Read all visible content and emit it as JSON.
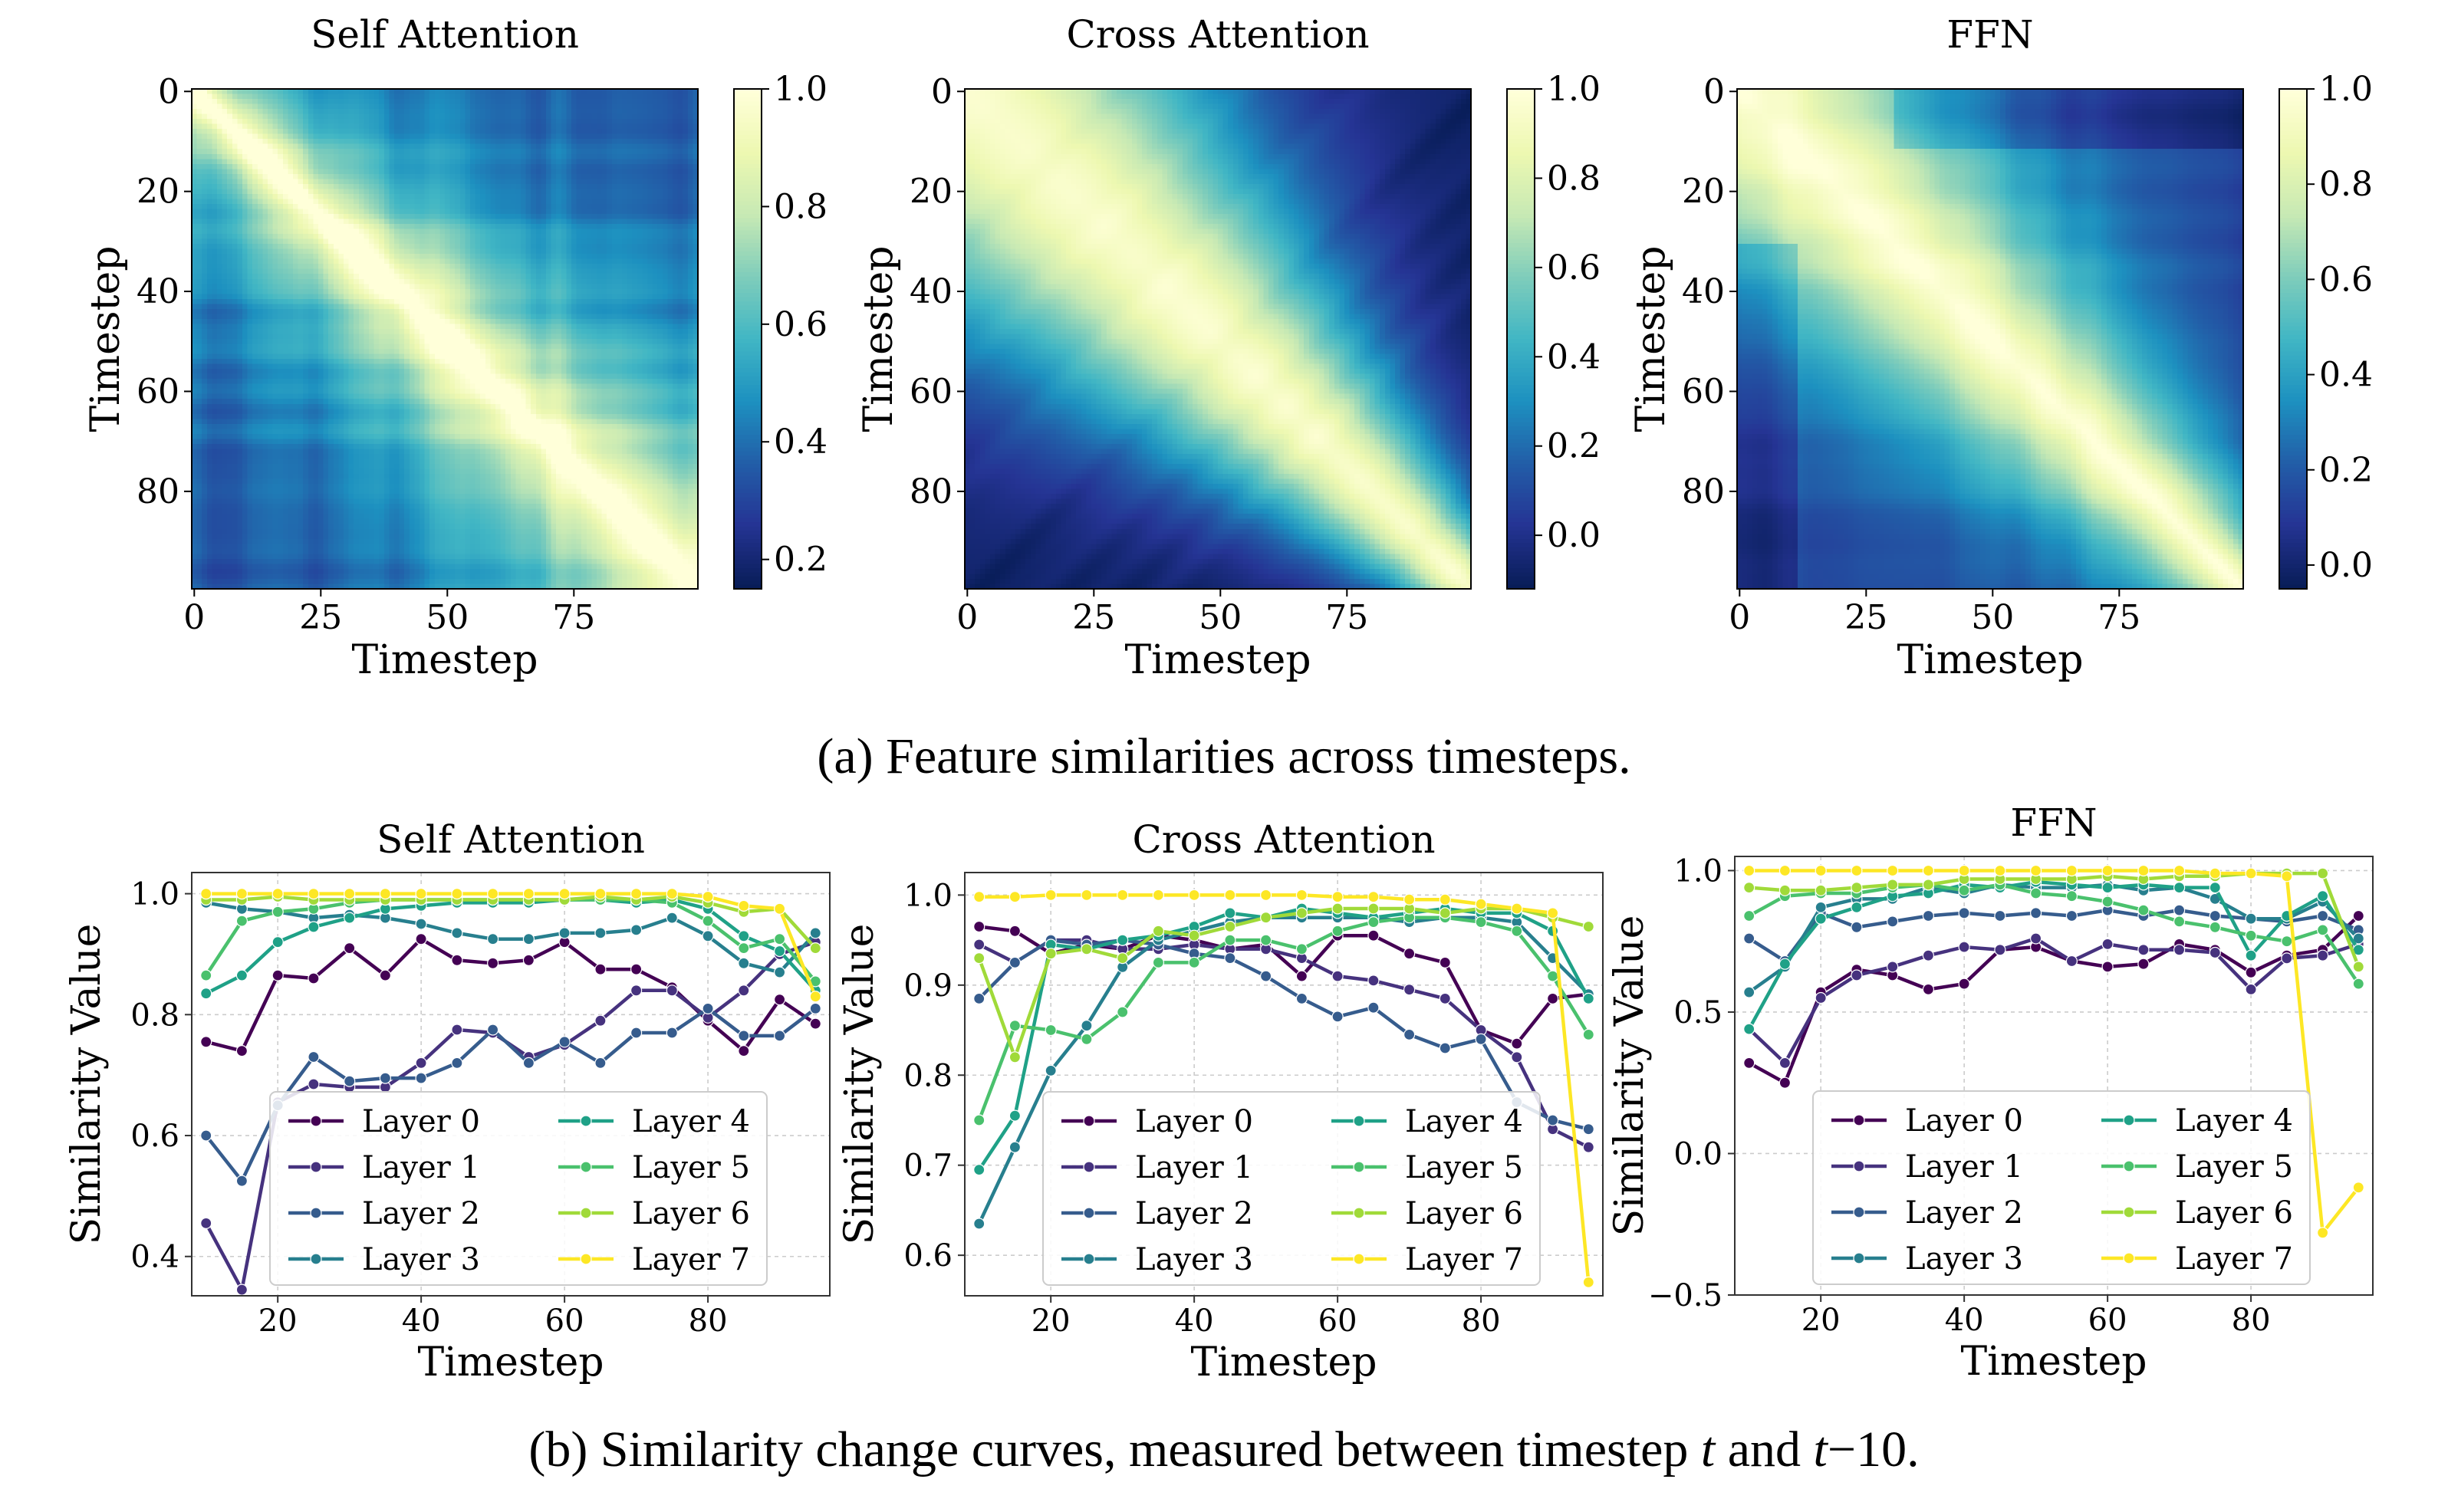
{
  "captions": {
    "a": "(a) Feature similarities across timesteps.",
    "b_prefix": "(b) Similarity change curves, measured between timestep ",
    "b_t1": "t",
    "b_mid": " and ",
    "b_t2": "t",
    "b_suffix": "−10."
  },
  "colors": {
    "viridis": [
      "#440154",
      "#46327e",
      "#365c8d",
      "#277f8e",
      "#1fa187",
      "#4ac16d",
      "#a0da39",
      "#fde725"
    ],
    "ylgnbu": [
      "#081d58",
      "#253494",
      "#225ea8",
      "#1d91c0",
      "#41b6c4",
      "#7fcdbb",
      "#c7e9b4",
      "#edf8b1",
      "#ffffd9"
    ]
  },
  "chart_data": [
    {
      "type": "heatmap",
      "title": "Self Attention",
      "xlabel": "Timestep",
      "ylabel": "Timestep",
      "xticks": [
        "0",
        "25",
        "50",
        "75"
      ],
      "yticks": [
        "0",
        "20",
        "40",
        "60",
        "80"
      ],
      "size": 100,
      "colorbar_ticks": [
        "0.2",
        "0.4",
        "0.6",
        "0.8",
        "1.0"
      ],
      "colorbar_range": [
        0.15,
        1.0
      ],
      "params": {
        "decay": 45,
        "base": 0.5,
        "noise": 0.09,
        "mode": "self"
      }
    },
    {
      "type": "heatmap",
      "title": "Cross Attention",
      "xlabel": "Timestep",
      "ylabel": "Timestep",
      "xticks": [
        "0",
        "25",
        "50",
        "75"
      ],
      "yticks": [
        "0",
        "20",
        "40",
        "60",
        "80"
      ],
      "size": 100,
      "colorbar_ticks": [
        "0.0",
        "0.2",
        "0.4",
        "0.6",
        "0.8",
        "1.0"
      ],
      "colorbar_range": [
        -0.12,
        1.0
      ],
      "params": {
        "decay": 30,
        "base": 0.0,
        "noise": 0.03,
        "mode": "cross"
      }
    },
    {
      "type": "heatmap",
      "title": "FFN",
      "xlabel": "Timestep",
      "ylabel": "Timestep",
      "xticks": [
        "0",
        "25",
        "50",
        "75"
      ],
      "yticks": [
        "0",
        "20",
        "40",
        "60",
        "80"
      ],
      "size": 100,
      "colorbar_ticks": [
        "0.0",
        "0.2",
        "0.4",
        "0.6",
        "0.8",
        "1.0"
      ],
      "colorbar_range": [
        -0.05,
        1.0
      ],
      "params": {
        "decay": 40,
        "base": 0.2,
        "noise": 0.05,
        "mode": "ffn"
      }
    },
    {
      "type": "line",
      "title": "Self Attention",
      "xlabel": "Timestep",
      "ylabel": "Similarity Value",
      "xlim": [
        8,
        97
      ],
      "ylim": [
        0.335,
        1.035
      ],
      "xticks": [
        20,
        40,
        60,
        80
      ],
      "yticks": [
        0.4,
        0.6,
        0.8,
        1.0
      ],
      "ytick_labels": [
        "0.4",
        "0.6",
        "0.8",
        "1.0"
      ],
      "x": [
        10,
        15,
        20,
        25,
        30,
        35,
        40,
        45,
        50,
        55,
        60,
        65,
        70,
        75,
        80,
        85,
        90,
        95
      ],
      "series": [
        {
          "name": "Layer 0",
          "values": [
            0.755,
            0.74,
            0.865,
            0.86,
            0.91,
            0.865,
            0.925,
            0.89,
            0.885,
            0.89,
            0.92,
            0.875,
            0.875,
            0.845,
            0.79,
            0.74,
            0.825,
            0.785
          ]
        },
        {
          "name": "Layer 1",
          "values": [
            0.455,
            0.345,
            0.655,
            0.685,
            0.68,
            0.68,
            0.72,
            0.775,
            0.77,
            0.73,
            0.75,
            0.79,
            0.84,
            0.84,
            0.795,
            0.84,
            0.9,
            0.92
          ]
        },
        {
          "name": "Layer 2",
          "values": [
            0.6,
            0.525,
            0.65,
            0.73,
            0.69,
            0.695,
            0.695,
            0.72,
            0.775,
            0.72,
            0.755,
            0.72,
            0.77,
            0.77,
            0.81,
            0.765,
            0.765,
            0.81
          ]
        },
        {
          "name": "Layer 3",
          "values": [
            0.985,
            0.975,
            0.97,
            0.96,
            0.965,
            0.96,
            0.95,
            0.935,
            0.925,
            0.925,
            0.935,
            0.935,
            0.94,
            0.96,
            0.93,
            0.885,
            0.87,
            0.935
          ]
        },
        {
          "name": "Layer 4",
          "values": [
            0.835,
            0.865,
            0.92,
            0.945,
            0.96,
            0.975,
            0.98,
            0.985,
            0.985,
            0.985,
            0.99,
            0.99,
            0.985,
            0.99,
            0.975,
            0.93,
            0.905,
            0.84
          ]
        },
        {
          "name": "Layer 5",
          "values": [
            0.865,
            0.955,
            0.97,
            0.975,
            0.985,
            0.99,
            0.99,
            0.99,
            0.99,
            0.99,
            0.99,
            0.99,
            0.99,
            0.985,
            0.955,
            0.91,
            0.925,
            0.855
          ]
        },
        {
          "name": "Layer 6",
          "values": [
            0.99,
            0.99,
            0.995,
            0.99,
            0.99,
            0.99,
            0.99,
            0.99,
            0.99,
            0.99,
            0.99,
            0.995,
            0.99,
            0.995,
            0.985,
            0.97,
            0.975,
            0.91
          ]
        },
        {
          "name": "Layer 7",
          "values": [
            1.0,
            1.0,
            1.0,
            1.0,
            1.0,
            1.0,
            1.0,
            1.0,
            1.0,
            1.0,
            1.0,
            1.0,
            1.0,
            1.0,
            0.995,
            0.98,
            0.975,
            0.83
          ]
        }
      ],
      "legend": "lower-center, 2 columns"
    },
    {
      "type": "line",
      "title": "Cross Attention",
      "xlabel": "Timestep",
      "ylabel": "Similarity Value",
      "xlim": [
        8,
        97
      ],
      "ylim": [
        0.555,
        1.025
      ],
      "xticks": [
        20,
        40,
        60,
        80
      ],
      "yticks": [
        0.6,
        0.7,
        0.8,
        0.9,
        1.0
      ],
      "ytick_labels": [
        "0.6",
        "0.7",
        "0.8",
        "0.9",
        "1.0"
      ],
      "x": [
        10,
        15,
        20,
        25,
        30,
        35,
        40,
        45,
        50,
        55,
        60,
        65,
        70,
        75,
        80,
        85,
        90,
        95
      ],
      "series": [
        {
          "name": "Layer 0",
          "values": [
            0.965,
            0.96,
            0.935,
            0.945,
            0.94,
            0.955,
            0.95,
            0.94,
            0.945,
            0.91,
            0.955,
            0.955,
            0.935,
            0.925,
            0.85,
            0.835,
            0.885,
            0.89
          ]
        },
        {
          "name": "Layer 1",
          "values": [
            0.945,
            0.925,
            0.95,
            0.95,
            0.94,
            0.94,
            0.945,
            0.94,
            0.94,
            0.93,
            0.91,
            0.905,
            0.895,
            0.885,
            0.85,
            0.82,
            0.74,
            0.72
          ]
        },
        {
          "name": "Layer 2",
          "values": [
            0.885,
            0.925,
            0.95,
            0.945,
            0.95,
            0.945,
            0.935,
            0.93,
            0.91,
            0.885,
            0.865,
            0.875,
            0.845,
            0.83,
            0.84,
            0.77,
            0.75,
            0.74
          ]
        },
        {
          "name": "Layer 3",
          "values": [
            0.635,
            0.72,
            0.805,
            0.855,
            0.92,
            0.95,
            0.96,
            0.97,
            0.975,
            0.975,
            0.975,
            0.975,
            0.97,
            0.975,
            0.975,
            0.97,
            0.93,
            0.89
          ]
        },
        {
          "name": "Layer 4",
          "values": [
            0.695,
            0.755,
            0.945,
            0.94,
            0.95,
            0.955,
            0.965,
            0.98,
            0.975,
            0.985,
            0.98,
            0.975,
            0.98,
            0.985,
            0.98,
            0.98,
            0.96,
            0.885
          ]
        },
        {
          "name": "Layer 5",
          "values": [
            0.75,
            0.855,
            0.85,
            0.84,
            0.87,
            0.925,
            0.925,
            0.95,
            0.95,
            0.94,
            0.96,
            0.97,
            0.975,
            0.975,
            0.97,
            0.96,
            0.91,
            0.845
          ]
        },
        {
          "name": "Layer 6",
          "values": [
            0.93,
            0.82,
            0.935,
            0.94,
            0.93,
            0.96,
            0.955,
            0.965,
            0.975,
            0.98,
            0.985,
            0.985,
            0.985,
            0.98,
            0.985,
            0.985,
            0.975,
            0.965
          ]
        },
        {
          "name": "Layer 7",
          "values": [
            0.998,
            0.998,
            1.0,
            1.0,
            1.0,
            1.0,
            1.0,
            1.0,
            1.0,
            1.0,
            0.998,
            0.998,
            0.995,
            0.995,
            0.99,
            0.985,
            0.98,
            0.57
          ]
        }
      ],
      "legend": "lower-center, 2 columns"
    },
    {
      "type": "line",
      "title": "FFN",
      "xlabel": "Timestep",
      "ylabel": "Similarity Value",
      "xlim": [
        8,
        97
      ],
      "ylim": [
        -0.5,
        1.05
      ],
      "xticks": [
        20,
        40,
        60,
        80
      ],
      "yticks": [
        -0.5,
        0.0,
        0.5,
        1.0
      ],
      "ytick_labels": [
        "−0.5",
        "0.0",
        "0.5",
        "1.0"
      ],
      "x": [
        10,
        15,
        20,
        25,
        30,
        35,
        40,
        45,
        50,
        55,
        60,
        65,
        70,
        75,
        80,
        85,
        90,
        95
      ],
      "series": [
        {
          "name": "Layer 0",
          "values": [
            0.32,
            0.25,
            0.57,
            0.65,
            0.63,
            0.58,
            0.6,
            0.72,
            0.73,
            0.68,
            0.66,
            0.67,
            0.74,
            0.72,
            0.64,
            0.7,
            0.72,
            0.84
          ]
        },
        {
          "name": "Layer 1",
          "values": [
            0.44,
            0.32,
            0.55,
            0.63,
            0.66,
            0.7,
            0.73,
            0.72,
            0.76,
            0.68,
            0.74,
            0.72,
            0.72,
            0.71,
            0.58,
            0.69,
            0.7,
            0.74
          ]
        },
        {
          "name": "Layer 2",
          "values": [
            0.76,
            0.68,
            0.85,
            0.8,
            0.82,
            0.84,
            0.85,
            0.84,
            0.85,
            0.84,
            0.86,
            0.84,
            0.86,
            0.84,
            0.83,
            0.82,
            0.84,
            0.79
          ]
        },
        {
          "name": "Layer 3",
          "values": [
            0.57,
            0.66,
            0.87,
            0.9,
            0.9,
            0.94,
            0.92,
            0.95,
            0.94,
            0.94,
            0.95,
            0.93,
            0.94,
            0.9,
            0.83,
            0.83,
            0.89,
            0.76
          ]
        },
        {
          "name": "Layer 4",
          "values": [
            0.44,
            0.67,
            0.83,
            0.87,
            0.91,
            0.92,
            0.95,
            0.94,
            0.96,
            0.95,
            0.94,
            0.95,
            0.94,
            0.94,
            0.7,
            0.84,
            0.91,
            0.72
          ]
        },
        {
          "name": "Layer 5",
          "values": [
            0.84,
            0.91,
            0.92,
            0.92,
            0.94,
            0.95,
            0.93,
            0.95,
            0.92,
            0.91,
            0.89,
            0.86,
            0.82,
            0.8,
            0.77,
            0.75,
            0.79,
            0.6
          ]
        },
        {
          "name": "Layer 6",
          "values": [
            0.94,
            0.93,
            0.93,
            0.94,
            0.95,
            0.95,
            0.97,
            0.97,
            0.97,
            0.97,
            0.98,
            0.97,
            0.98,
            0.98,
            0.99,
            0.99,
            0.99,
            0.66
          ]
        },
        {
          "name": "Layer 7",
          "values": [
            1.0,
            1.0,
            1.0,
            1.0,
            1.0,
            1.0,
            1.0,
            1.0,
            1.0,
            1.0,
            1.0,
            1.0,
            1.0,
            0.99,
            0.99,
            0.98,
            -0.28,
            -0.12
          ]
        }
      ],
      "legend": "lower-center, 2 columns"
    }
  ]
}
